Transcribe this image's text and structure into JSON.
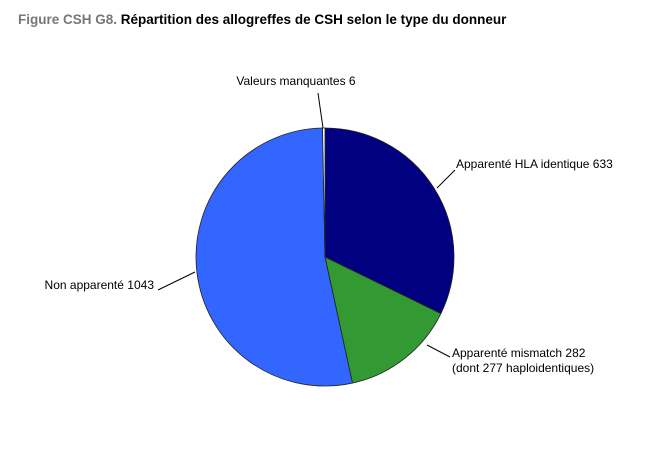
{
  "chart_data": {
    "type": "pie",
    "figure_label": "Figure CSH G8.",
    "title": "Répartition des allogreffes de CSH selon le type du donneur",
    "categories": [
      "Apparenté HLA identique",
      "Apparenté mismatch",
      "Non apparenté",
      "Valeurs manquantes"
    ],
    "values": [
      633,
      282,
      1043,
      6
    ],
    "value_notes": [
      null,
      "(dont 277 haploidentiques)",
      null,
      null
    ],
    "colors": [
      "#000080",
      "#339933",
      "#3366ff",
      "#ffffff"
    ]
  }
}
